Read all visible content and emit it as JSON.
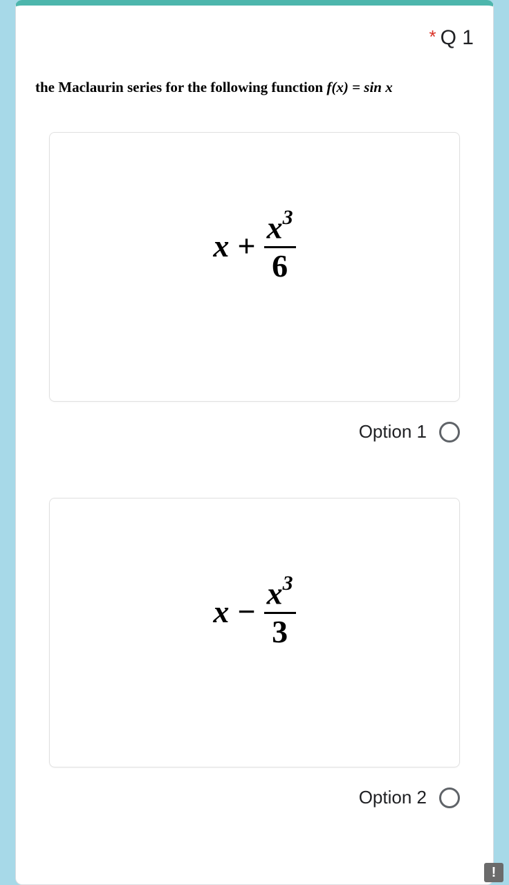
{
  "question": {
    "number_label": "Q 1",
    "required_marker": "*",
    "prompt_prefix": "the Maclaurin series for the following function ",
    "prompt_fx": "f(x) = sin x"
  },
  "options": [
    {
      "label": "Option 1",
      "formula": {
        "lead_var": "x",
        "operator": "+",
        "numerator_var": "x",
        "numerator_exp": "3",
        "denominator": "6"
      }
    },
    {
      "label": "Option 2",
      "formula": {
        "lead_var": "x",
        "operator": "−",
        "numerator_var": "x",
        "numerator_exp": "3",
        "denominator": "3"
      }
    }
  ],
  "alert_glyph": "!"
}
